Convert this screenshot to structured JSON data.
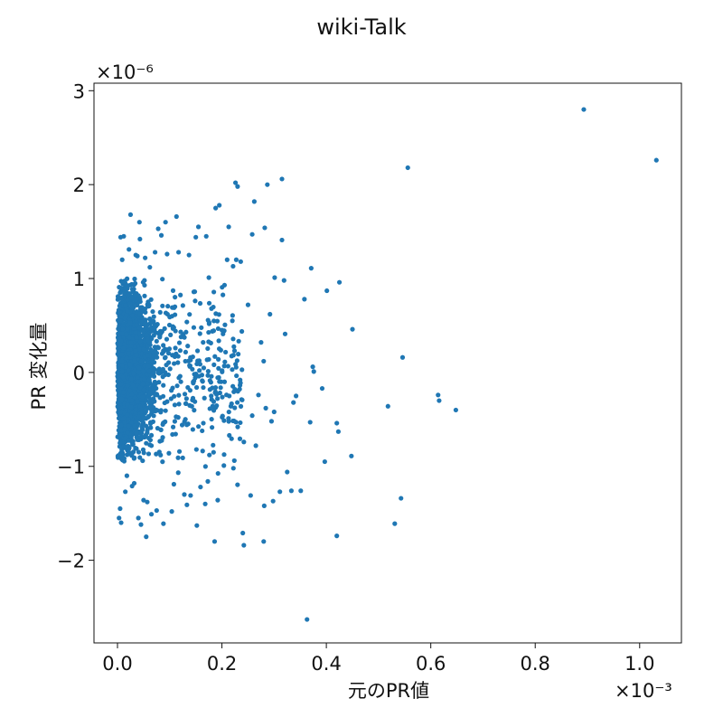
{
  "chart_data": {
    "type": "scatter",
    "title": "wiki-Talk",
    "xlabel": "元のPR値",
    "ylabel": "PR 変化量",
    "x_multiplier_label": "×10⁻³",
    "y_multiplier_label": "×10⁻⁶",
    "xlim": [
      -0.045,
      1.08
    ],
    "ylim": [
      -2.88,
      3.08
    ],
    "x_ticks": [
      0.0,
      0.2,
      0.4,
      0.6,
      0.8,
      1.0
    ],
    "x_tick_labels": [
      "0.0",
      "0.2",
      "0.4",
      "0.6",
      "0.8",
      "1.0"
    ],
    "y_ticks": [
      -2,
      -1,
      0,
      1,
      2,
      3
    ],
    "y_tick_labels": [
      "−2",
      "−1",
      "0",
      "1",
      "2",
      "3"
    ],
    "grid": false,
    "marker_color": "#1f77b4",
    "notes_units": "x in units of 1e-3, y in units of 1e-6",
    "series": [
      {
        "values_summary": "dense cluster of several thousand points for x in [0, 0.12], y roughly in [-0.9, 0.9]",
        "points": [
          [
            0.893,
            2.8
          ],
          [
            1.032,
            2.26
          ],
          [
            0.556,
            2.18
          ],
          [
            0.363,
            -2.63
          ],
          [
            0.614,
            -0.24
          ],
          [
            0.616,
            -0.3
          ],
          [
            0.648,
            -0.4
          ],
          [
            0.546,
            0.16
          ],
          [
            0.518,
            -0.36
          ],
          [
            0.543,
            -1.34
          ],
          [
            0.531,
            -1.61
          ],
          [
            0.45,
            0.46
          ],
          [
            0.448,
            -0.89
          ],
          [
            0.42,
            -0.54
          ],
          [
            0.423,
            -0.63
          ],
          [
            0.42,
            -1.74
          ],
          [
            0.425,
            0.96
          ],
          [
            0.401,
            0.87
          ],
          [
            0.397,
            -0.95
          ],
          [
            0.392,
            -0.17
          ],
          [
            0.374,
            0.06
          ],
          [
            0.376,
            0.01
          ],
          [
            0.371,
            1.11
          ],
          [
            0.369,
            -0.53
          ],
          [
            0.358,
            0.78
          ],
          [
            0.351,
            -1.26
          ],
          [
            0.342,
            -0.25
          ],
          [
            0.337,
            -0.32
          ],
          [
            0.333,
            -1.26
          ],
          [
            0.325,
            -1.06
          ],
          [
            0.321,
            0.41
          ],
          [
            0.319,
            0.98
          ],
          [
            0.315,
            1.41
          ],
          [
            0.315,
            2.06
          ],
          [
            0.311,
            -1.27
          ],
          [
            0.301,
            1.01
          ],
          [
            0.3,
            -0.42
          ],
          [
            0.295,
            -0.52
          ],
          [
            0.298,
            -1.37
          ],
          [
            0.292,
            0.62
          ],
          [
            0.287,
            2.0
          ],
          [
            0.284,
            -0.38
          ],
          [
            0.282,
            1.54
          ],
          [
            0.281,
            -1.42
          ],
          [
            0.28,
            -1.8
          ],
          [
            0.275,
            0.32
          ],
          [
            0.27,
            -0.24
          ],
          [
            0.265,
            -0.78
          ],
          [
            0.262,
            1.82
          ],
          [
            0.258,
            1.47
          ],
          [
            0.255,
            -1.31
          ],
          [
            0.25,
            0.72
          ],
          [
            0.242,
            -0.74
          ],
          [
            0.24,
            -1.71
          ],
          [
            0.242,
            -1.84
          ],
          [
            0.236,
            1.18
          ],
          [
            0.23,
            1.98
          ],
          [
            0.226,
            2.02
          ],
          [
            0.222,
            -1.02
          ],
          [
            0.22,
            0.55
          ],
          [
            0.213,
            1.55
          ],
          [
            0.205,
            -0.1
          ],
          [
            0.2,
            0.45
          ],
          [
            0.195,
            1.78
          ],
          [
            0.192,
            -1.36
          ],
          [
            0.188,
            1.75
          ],
          [
            0.186,
            -1.8
          ],
          [
            0.184,
            -0.85
          ],
          [
            0.18,
            0.68
          ],
          [
            0.175,
            1.01
          ],
          [
            0.173,
            -1.16
          ],
          [
            0.17,
            1.45
          ],
          [
            0.168,
            -1.4
          ],
          [
            0.164,
            0.32
          ],
          [
            0.159,
            -1.22
          ],
          [
            0.155,
            1.55
          ],
          [
            0.152,
            -1.63
          ],
          [
            0.15,
            1.44
          ],
          [
            0.148,
            0.86
          ],
          [
            0.14,
            -1.31
          ],
          [
            0.137,
            1.25
          ],
          [
            0.133,
            -1.41
          ],
          [
            0.13,
            0.12
          ],
          [
            0.128,
            -1.3
          ],
          [
            0.125,
            -0.91
          ],
          [
            0.12,
            -0.04
          ],
          [
            0.117,
            1.28
          ],
          [
            0.113,
            1.66
          ],
          [
            0.11,
            0.7
          ],
          [
            0.108,
            -1.19
          ],
          [
            0.104,
            -1.48
          ],
          [
            0.1,
            0.59
          ],
          [
            0.095,
            1.26
          ],
          [
            0.092,
            1.6
          ],
          [
            0.088,
            -1.61
          ],
          [
            0.084,
            1.46
          ],
          [
            0.078,
            1.53
          ],
          [
            0.075,
            -1.47
          ],
          [
            0.072,
            1.28
          ],
          [
            0.065,
            -1.51
          ],
          [
            0.062,
            1.12
          ],
          [
            0.06,
            -0.7
          ],
          [
            0.057,
            -1.38
          ],
          [
            0.053,
            1.22
          ],
          [
            0.05,
            -1.36
          ],
          [
            0.045,
            -1.62
          ],
          [
            0.043,
            1.42
          ],
          [
            0.042,
            1.6
          ],
          [
            0.04,
            -1.55
          ],
          [
            0.038,
            1.24
          ],
          [
            0.035,
            1.25
          ],
          [
            0.032,
            -1.18
          ],
          [
            0.028,
            -1.21
          ],
          [
            0.025,
            1.68
          ],
          [
            0.022,
            1.31
          ],
          [
            0.018,
            -1.1
          ],
          [
            0.015,
            -1.27
          ],
          [
            0.012,
            1.45
          ],
          [
            0.009,
            1.2
          ],
          [
            0.007,
            -1.6
          ],
          [
            0.005,
            -1.45
          ],
          [
            0.003,
            -1.55
          ],
          [
            0.006,
            1.44
          ],
          [
            0.055,
            -1.75
          ],
          [
            0.205,
            0.93
          ],
          [
            0.225,
            -0.18
          ],
          [
            0.258,
            -0.46
          ],
          [
            0.28,
            0.12
          ]
        ]
      }
    ]
  }
}
